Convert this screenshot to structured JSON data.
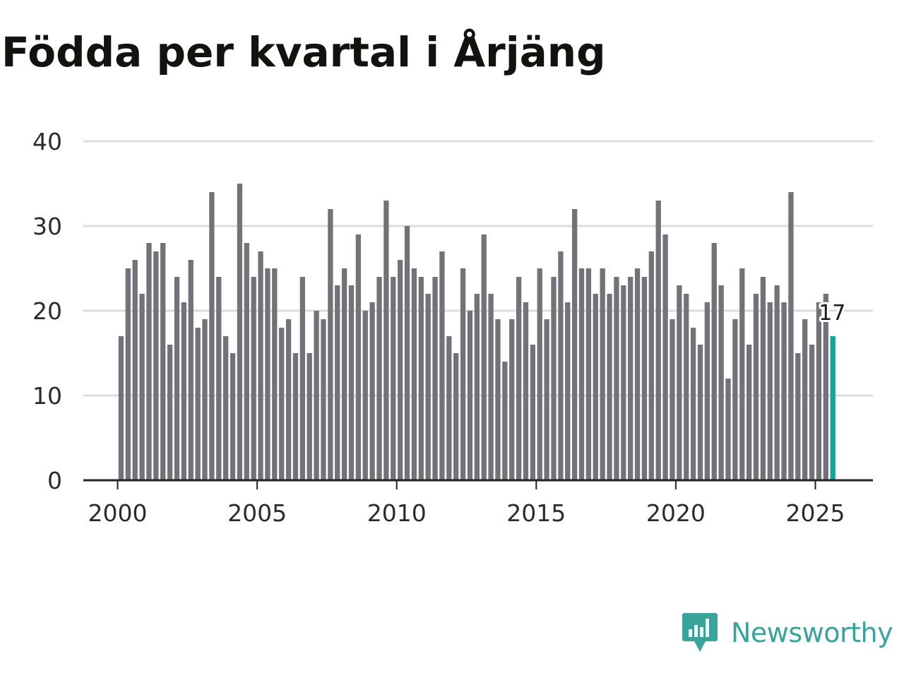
{
  "title": "Födda per kvartal i Årjäng",
  "brand": "Newsworthy",
  "colors": {
    "bar": "#737278",
    "highlight": "#1aa39b",
    "grid": "#dcdcdc",
    "axis": "#222222",
    "title": "#12130e",
    "brand": "#3aa39a"
  },
  "chart_data": {
    "type": "bar",
    "title": "Födda per kvartal i Årjäng",
    "xlabel": "",
    "ylabel": "",
    "ylim": [
      0,
      40
    ],
    "yticks": [
      0,
      10,
      20,
      30,
      40
    ],
    "xticks": [
      2000,
      2005,
      2010,
      2015,
      2020,
      2025
    ],
    "start_year": 2000,
    "start_quarter": 1,
    "values": [
      17,
      25,
      26,
      22,
      28,
      27,
      28,
      16,
      24,
      21,
      26,
      18,
      19,
      34,
      24,
      17,
      15,
      35,
      28,
      24,
      27,
      25,
      25,
      18,
      19,
      15,
      24,
      15,
      20,
      19,
      32,
      23,
      25,
      23,
      29,
      20,
      21,
      24,
      33,
      24,
      26,
      30,
      25,
      24,
      22,
      24,
      27,
      17,
      15,
      25,
      20,
      22,
      29,
      22,
      19,
      14,
      19,
      24,
      21,
      16,
      25,
      19,
      24,
      27,
      21,
      32,
      25,
      25,
      22,
      25,
      22,
      24,
      23,
      24,
      25,
      24,
      27,
      33,
      29,
      19,
      23,
      22,
      18,
      16,
      21,
      28,
      23,
      12,
      19,
      25,
      16,
      22,
      24,
      21,
      23,
      21,
      34,
      15,
      19,
      16,
      21,
      22,
      17
    ],
    "highlight_index": 102,
    "last_value_label": "17",
    "grid": true
  }
}
